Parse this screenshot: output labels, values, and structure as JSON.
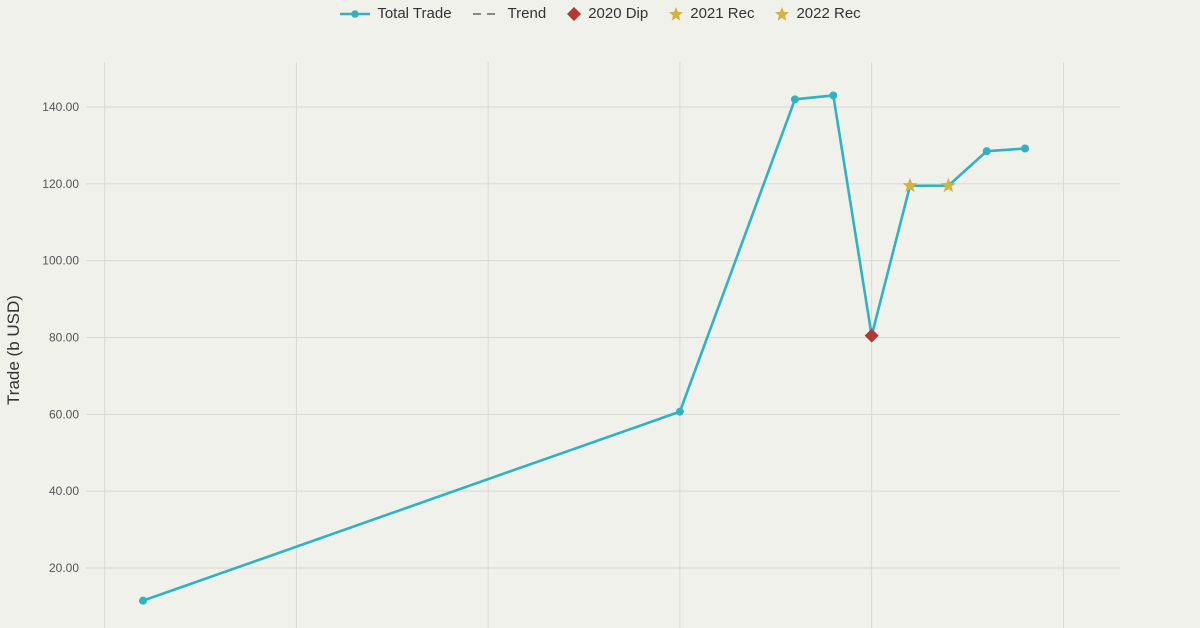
{
  "chart_data": {
    "type": "line",
    "ylabel": "Trade (b USD)",
    "xlabel": "",
    "title": "",
    "ylim": [
      10,
      150
    ],
    "xlim": [
      2000,
      2026
    ],
    "yticks": [
      "20.00",
      "40.00",
      "60.00",
      "80.00",
      "100.00",
      "120.00",
      "140.00"
    ],
    "grid": true,
    "legend_position": "top-center",
    "series": [
      {
        "name": "Total Trade",
        "color": "#2eb3c2",
        "x": [
          2001,
          2015,
          2018,
          2019,
          2020,
          2021,
          2022,
          2023,
          2024
        ],
        "values": [
          11.5,
          60.7,
          142.0,
          143.0,
          80.5,
          119.5,
          119.5,
          128.5,
          129.2
        ]
      },
      {
        "name": "Trend",
        "color": "#8a8a8a",
        "style": "dashed",
        "x": [],
        "values": []
      },
      {
        "name": "2020 Dip",
        "color": "#b23a33",
        "marker": "diamond",
        "x": [
          2020
        ],
        "values": [
          80.5
        ]
      },
      {
        "name": "2021 Rec",
        "color": "#d4b340",
        "marker": "star",
        "x": [
          2021
        ],
        "values": [
          119.5
        ]
      },
      {
        "name": "2022 Rec",
        "color": "#d4b340",
        "marker": "star",
        "x": [
          2022
        ],
        "values": [
          119.5
        ]
      }
    ]
  },
  "legend": [
    {
      "label": "Total Trade",
      "icon": "line-dot",
      "color": "#2eb3c2"
    },
    {
      "label": "Trend",
      "icon": "dash",
      "color": "#8a8a8a"
    },
    {
      "label": "2020 Dip",
      "icon": "diamond",
      "color": "#b23a33"
    },
    {
      "label": "2021 Rec",
      "icon": "star",
      "color": "#d4b340"
    },
    {
      "label": "2022 Rec",
      "icon": "star",
      "color": "#d4b340"
    }
  ]
}
